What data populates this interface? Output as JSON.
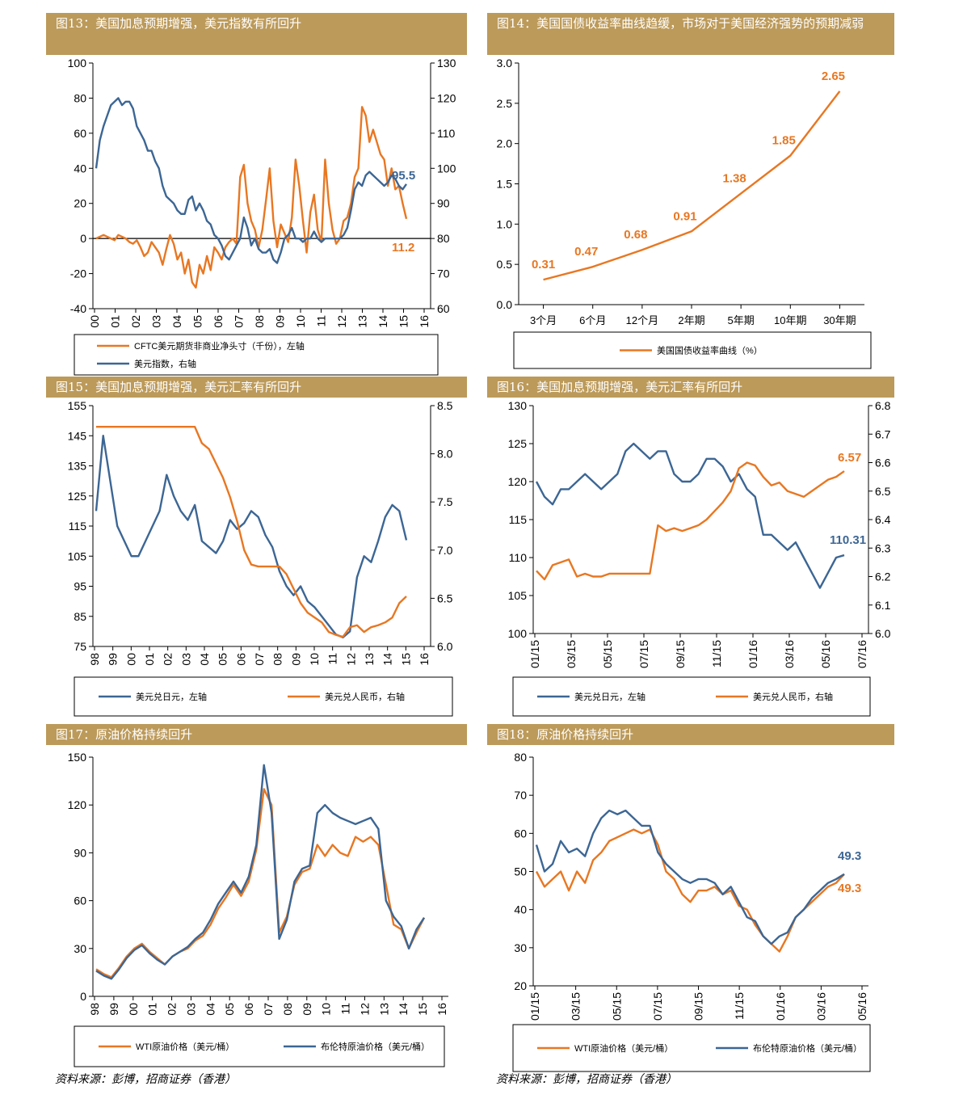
{
  "colors": {
    "orange": "#e87722",
    "blue": "#3c6694",
    "gold": "#bc9a5a"
  },
  "sources": {
    "left": "资料来源：彭博，招商证券（香港）",
    "right": "资料来源：彭博，招商证券（香港）"
  },
  "chart_data": [
    {
      "id": "c13",
      "type": "line",
      "title": "图13：美国加息预期增强，美元指数有所回升",
      "x_ticks": [
        "00",
        "01",
        "02",
        "03",
        "04",
        "05",
        "06",
        "07",
        "08",
        "09",
        "10",
        "11",
        "12",
        "13",
        "14",
        "15",
        "16"
      ],
      "ylim_left": [
        -40,
        100
      ],
      "yticks_left": [
        -40,
        -20,
        0,
        20,
        40,
        60,
        80,
        100
      ],
      "ylim_right": [
        60,
        130
      ],
      "yticks_right": [
        60,
        70,
        80,
        90,
        100,
        110,
        120,
        130
      ],
      "series": [
        {
          "name": "CFTC美元期货非商业净头寸（千份），左轴",
          "axis": "left",
          "color": "orange",
          "values": [
            0,
            1,
            2,
            1,
            0,
            -1,
            2,
            1,
            0,
            -2,
            -3,
            -1,
            -5,
            -10,
            -8,
            -2,
            -5,
            -8,
            -15,
            -6,
            2,
            -3,
            -12,
            -8,
            -20,
            -12,
            -25,
            -28,
            -15,
            -20,
            -10,
            -18,
            -5,
            -8,
            -12,
            -5,
            -2,
            0,
            -3,
            35,
            42,
            20,
            10,
            5,
            -5,
            5,
            22,
            40,
            10,
            -5,
            8,
            3,
            -2,
            12,
            45,
            30,
            10,
            -8,
            15,
            25,
            5,
            -2,
            45,
            20,
            5,
            -3,
            0,
            10,
            12,
            20,
            35,
            40,
            75,
            70,
            55,
            62,
            55,
            48,
            45,
            30,
            40,
            28,
            30,
            20,
            11.2
          ]
        },
        {
          "name": "美元指数，右轴",
          "axis": "right",
          "color": "blue",
          "values": [
            100,
            108,
            112,
            115,
            118,
            119,
            120,
            118,
            119,
            119,
            117,
            112,
            110,
            108,
            105,
            105,
            102,
            100,
            95,
            92,
            91,
            90,
            88,
            87,
            87,
            91,
            92,
            88,
            90,
            88,
            85,
            84,
            81,
            80,
            78,
            75,
            74,
            76,
            78,
            80,
            86,
            83,
            78,
            80,
            77,
            76,
            76,
            77,
            74,
            73,
            76,
            80,
            81,
            83,
            80,
            80,
            79,
            80,
            80,
            82,
            80,
            79,
            80,
            80,
            80,
            80,
            80,
            81,
            83,
            88,
            94,
            96,
            95,
            98,
            99,
            98,
            97,
            96,
            95,
            96,
            98,
            97,
            95,
            94,
            95.5
          ]
        }
      ],
      "annotations": [
        {
          "text": "95.5",
          "color": "blue"
        },
        {
          "text": "11.2",
          "color": "orange"
        }
      ]
    },
    {
      "id": "c14",
      "type": "line",
      "title": "图14：美国国债收益率曲线趋缓，市场对于美国经济强势的预期减弱",
      "categories": [
        "3个月",
        "6个月",
        "12个月",
        "2年期",
        "5年期",
        "10年期",
        "30年期"
      ],
      "ylim": [
        0.0,
        3.0
      ],
      "yticks": [
        "0.0",
        "0.5",
        "1.0",
        "1.5",
        "2.0",
        "2.5",
        "3.0"
      ],
      "series": [
        {
          "name": "美国国债收益率曲线（%）",
          "color": "orange",
          "values": [
            0.31,
            0.47,
            0.68,
            0.91,
            1.38,
            1.85,
            2.65
          ]
        }
      ],
      "labels": [
        "0.31",
        "0.47",
        "0.68",
        "0.91",
        "1.38",
        "1.85",
        "2.65"
      ]
    },
    {
      "id": "c15",
      "type": "line",
      "title": "图15：美国加息预期增强，美元汇率有所回升",
      "x_ticks": [
        "98",
        "99",
        "00",
        "01",
        "02",
        "03",
        "04",
        "05",
        "06",
        "07",
        "08",
        "09",
        "10",
        "11",
        "12",
        "13",
        "14",
        "15",
        "16"
      ],
      "ylim_left": [
        75,
        155
      ],
      "yticks_left": [
        75,
        85,
        95,
        105,
        115,
        125,
        135,
        145,
        155
      ],
      "ylim_right": [
        6.0,
        8.5
      ],
      "yticks_right": [
        "6.0",
        "6.5",
        "7.0",
        "7.5",
        "8.0",
        "8.5"
      ],
      "series": [
        {
          "name": "美元兑日元，左轴",
          "axis": "left",
          "color": "blue",
          "values": [
            120,
            145,
            130,
            115,
            110,
            105,
            105,
            110,
            115,
            120,
            132,
            125,
            120,
            117,
            122,
            110,
            108,
            106,
            110,
            117,
            114,
            116,
            120,
            118,
            112,
            108,
            100,
            95,
            92,
            95,
            90,
            88,
            85,
            82,
            79,
            78,
            80,
            98,
            105,
            103,
            110,
            118,
            122,
            120,
            110.3
          ]
        },
        {
          "name": "美元兑人民币，右轴",
          "axis": "right",
          "color": "orange",
          "values": [
            8.28,
            8.28,
            8.28,
            8.28,
            8.28,
            8.28,
            8.28,
            8.28,
            8.28,
            8.28,
            8.28,
            8.28,
            8.28,
            8.28,
            8.28,
            8.11,
            8.05,
            7.9,
            7.75,
            7.55,
            7.3,
            7.0,
            6.85,
            6.83,
            6.83,
            6.83,
            6.83,
            6.75,
            6.6,
            6.45,
            6.35,
            6.3,
            6.25,
            6.15,
            6.12,
            6.1,
            6.2,
            6.22,
            6.15,
            6.2,
            6.22,
            6.25,
            6.3,
            6.45,
            6.52
          ]
        }
      ]
    },
    {
      "id": "c16",
      "type": "line",
      "title": "图16：美国加息预期增强，美元汇率有所回升",
      "x_ticks": [
        "01/15",
        "03/15",
        "05/15",
        "07/15",
        "09/15",
        "11/15",
        "01/16",
        "03/16",
        "05/16",
        "07/16"
      ],
      "ylim_left": [
        100,
        130
      ],
      "yticks_left": [
        100,
        105,
        110,
        115,
        120,
        125,
        130
      ],
      "ylim_right": [
        6.0,
        6.8
      ],
      "yticks_right": [
        "6.0",
        "6.1",
        "6.2",
        "6.3",
        "6.4",
        "6.5",
        "6.6",
        "6.7",
        "6.8"
      ],
      "series": [
        {
          "name": "美元兑日元，左轴",
          "axis": "left",
          "color": "blue",
          "values": [
            120,
            118,
            117,
            119,
            119,
            120,
            121,
            120,
            119,
            120,
            121,
            124,
            125,
            124,
            123,
            124,
            124,
            121,
            120,
            120,
            121,
            123,
            123,
            122,
            120,
            121,
            119,
            118,
            113,
            113,
            112,
            111,
            112,
            110,
            108,
            106,
            108,
            110,
            110.31
          ]
        },
        {
          "name": "美元兑人民币，右轴",
          "axis": "right",
          "color": "orange",
          "values": [
            6.22,
            6.19,
            6.24,
            6.25,
            6.26,
            6.2,
            6.21,
            6.2,
            6.2,
            6.21,
            6.21,
            6.21,
            6.21,
            6.21,
            6.21,
            6.38,
            6.36,
            6.37,
            6.36,
            6.37,
            6.38,
            6.4,
            6.43,
            6.46,
            6.5,
            6.58,
            6.6,
            6.59,
            6.55,
            6.52,
            6.53,
            6.5,
            6.49,
            6.48,
            6.5,
            6.52,
            6.54,
            6.55,
            6.57
          ]
        }
      ],
      "annotations": [
        {
          "text": "110.31",
          "color": "blue"
        },
        {
          "text": "6.57",
          "color": "orange"
        }
      ]
    },
    {
      "id": "c17",
      "type": "line",
      "title": "图17：原油价格持续回升",
      "x_ticks": [
        "98",
        "99",
        "00",
        "01",
        "02",
        "03",
        "04",
        "05",
        "06",
        "07",
        "08",
        "09",
        "10",
        "11",
        "12",
        "13",
        "14",
        "15",
        "16"
      ],
      "ylim": [
        0,
        150
      ],
      "yticks": [
        0,
        30,
        60,
        90,
        120,
        150
      ],
      "series": [
        {
          "name": "WTI原油价格（美元/桶）",
          "color": "orange",
          "values": [
            17,
            14,
            12,
            18,
            25,
            30,
            33,
            28,
            24,
            20,
            25,
            28,
            30,
            35,
            38,
            45,
            55,
            62,
            70,
            63,
            72,
            92,
            130,
            120,
            40,
            50,
            70,
            78,
            80,
            95,
            88,
            95,
            90,
            88,
            100,
            97,
            100,
            95,
            70,
            45,
            42,
            30,
            40,
            49.3
          ]
        },
        {
          "name": "布伦特原油价格（美元/桶）",
          "color": "blue",
          "values": [
            16,
            13,
            11,
            17,
            24,
            29,
            32,
            27,
            23,
            20,
            25,
            28,
            31,
            36,
            40,
            48,
            58,
            65,
            72,
            65,
            75,
            95,
            145,
            115,
            36,
            48,
            72,
            80,
            82,
            115,
            120,
            115,
            112,
            110,
            108,
            110,
            112,
            105,
            60,
            50,
            44,
            30,
            42,
            49.3
          ]
        }
      ]
    },
    {
      "id": "c18",
      "type": "line",
      "title": "图18：原油价格持续回升",
      "x_ticks": [
        "01/15",
        "03/15",
        "05/15",
        "07/15",
        "09/15",
        "11/15",
        "01/16",
        "03/16",
        "05/16"
      ],
      "ylim": [
        20,
        80
      ],
      "yticks": [
        20,
        30,
        40,
        50,
        60,
        70,
        80
      ],
      "series": [
        {
          "name": "WTI原油价格（美元/桶）",
          "color": "orange",
          "values": [
            50,
            46,
            48,
            50,
            45,
            50,
            47,
            53,
            55,
            58,
            59,
            60,
            61,
            60,
            61,
            57,
            50,
            48,
            44,
            42,
            45,
            45,
            46,
            44,
            45,
            41,
            40,
            36,
            33,
            31,
            29,
            33,
            38,
            40,
            42,
            44,
            46,
            47,
            49.3
          ]
        },
        {
          "name": "布伦特原油价格（美元/桶）",
          "color": "blue",
          "values": [
            57,
            50,
            52,
            58,
            55,
            56,
            54,
            60,
            64,
            66,
            65,
            66,
            64,
            62,
            62,
            55,
            52,
            50,
            48,
            47,
            48,
            48,
            47,
            44,
            46,
            42,
            38,
            37,
            33,
            31,
            33,
            34,
            38,
            40,
            43,
            45,
            47,
            48,
            49.3
          ]
        }
      ],
      "annotations": [
        {
          "text": "49.3",
          "color": "blue"
        },
        {
          "text": "49.3",
          "color": "orange"
        }
      ]
    }
  ]
}
